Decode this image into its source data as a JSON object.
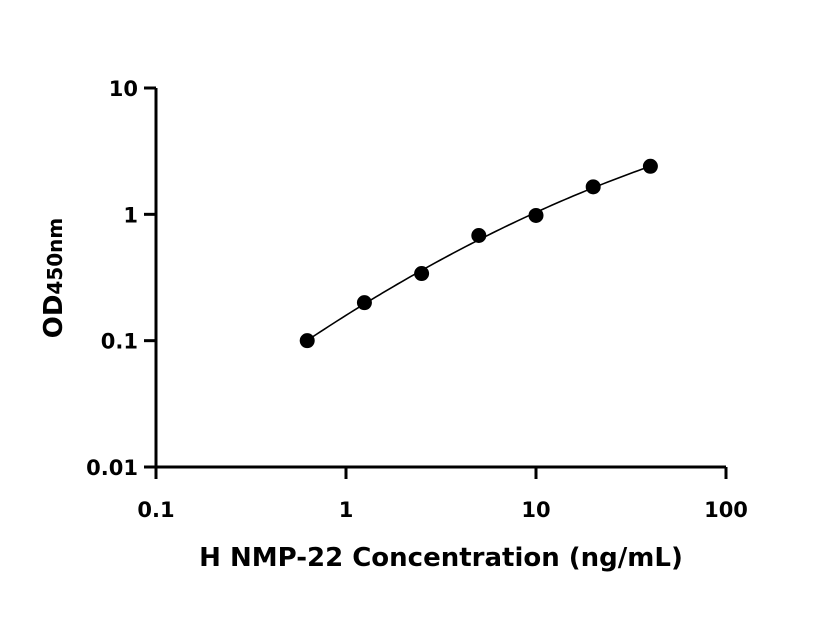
{
  "chart_data": {
    "type": "scatter",
    "xlabel": "H NMP-22 Concentration (ng/mL)",
    "ylabel_main": "OD",
    "ylabel_sub": "450nm",
    "x_scale": "log",
    "y_scale": "log",
    "xlim": [
      0.1,
      100
    ],
    "ylim": [
      0.01,
      10
    ],
    "x_ticks": [
      {
        "value": 0.1,
        "label": "0.1"
      },
      {
        "value": 1,
        "label": "1"
      },
      {
        "value": 10,
        "label": "10"
      },
      {
        "value": 100,
        "label": "100"
      }
    ],
    "y_ticks": [
      {
        "value": 0.01,
        "label": "0.01"
      },
      {
        "value": 0.1,
        "label": "0.1"
      },
      {
        "value": 1,
        "label": "1"
      },
      {
        "value": 10,
        "label": "10"
      }
    ],
    "grid": false,
    "legend": "none",
    "marker_color": "#000000",
    "curve_color": "#000000",
    "points": [
      {
        "x": 0.625,
        "y": 0.1
      },
      {
        "x": 1.25,
        "y": 0.2
      },
      {
        "x": 2.5,
        "y": 0.34
      },
      {
        "x": 5,
        "y": 0.68
      },
      {
        "x": 10,
        "y": 0.98
      },
      {
        "x": 20,
        "y": 1.65
      },
      {
        "x": 40,
        "y": 2.4
      }
    ],
    "fit_curve": true
  }
}
